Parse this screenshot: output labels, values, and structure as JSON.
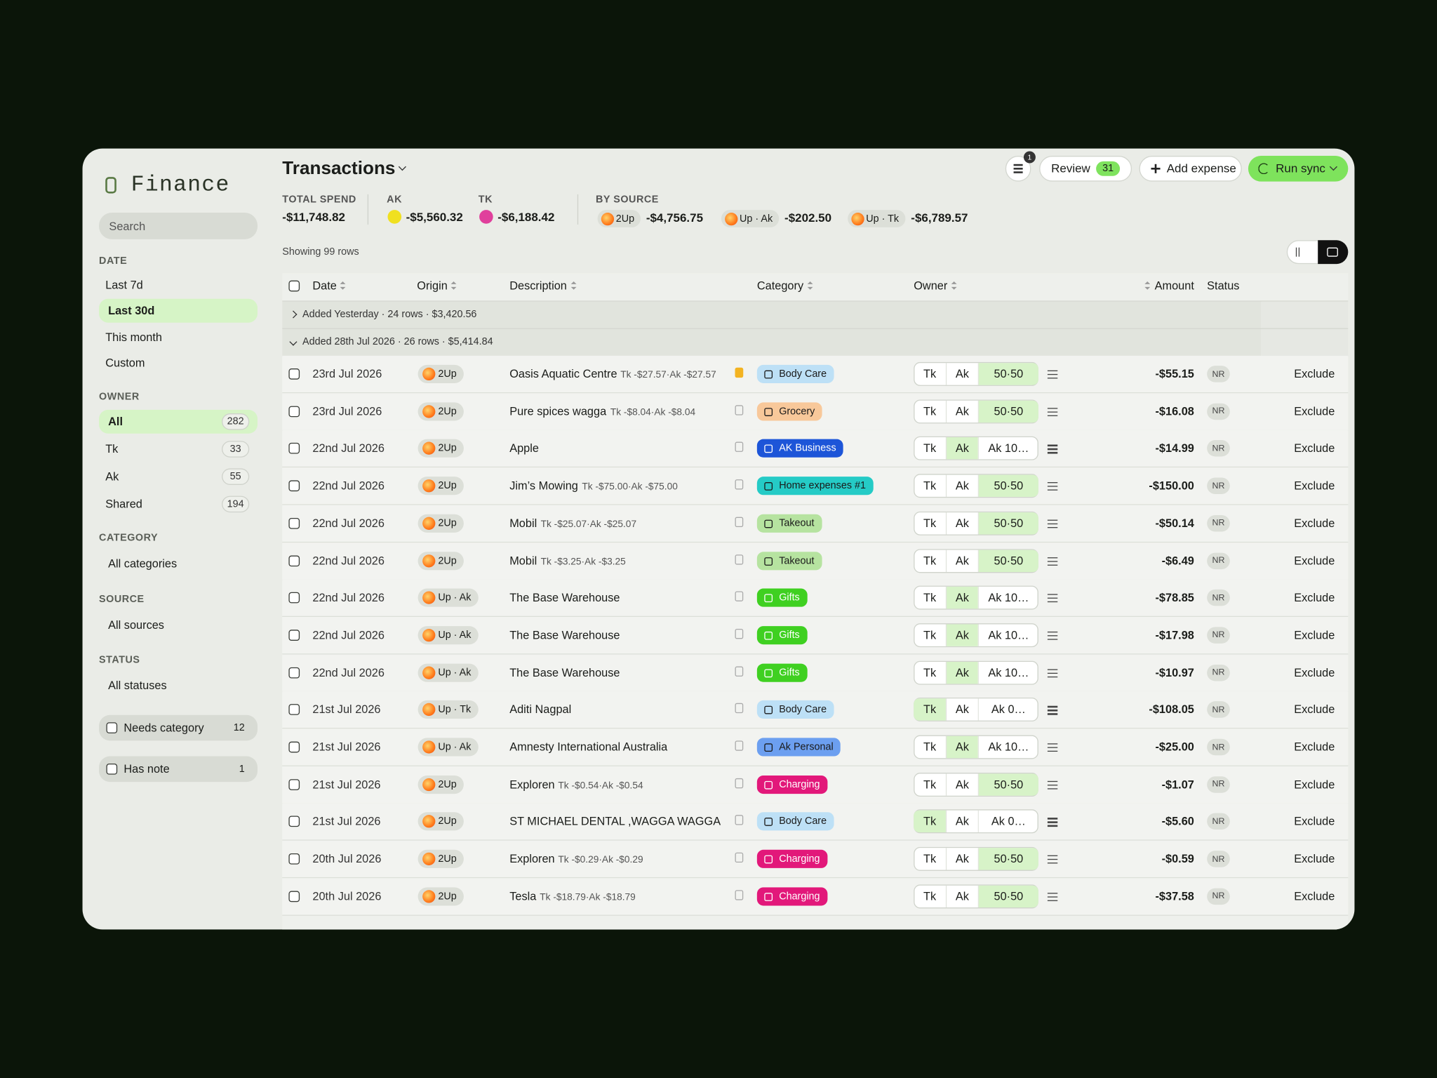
{
  "brand": "Finance",
  "sidebar": {
    "search": "Search",
    "date": {
      "label": "DATE",
      "items": [
        "Last 7d",
        "Last 30d",
        "This month",
        "Custom"
      ],
      "active": "Last 30d"
    },
    "owner": {
      "label": "OWNER",
      "items": [
        {
          "name": "All",
          "count": 282
        },
        {
          "name": "Tk",
          "count": 33
        },
        {
          "name": "Ak",
          "count": 55
        },
        {
          "name": "Shared",
          "count": 194
        }
      ],
      "active": "All"
    },
    "category": {
      "label": "CATEGORY",
      "items": [
        "All categories"
      ]
    },
    "source": {
      "label": "SOURCE",
      "items": [
        "All sources"
      ]
    },
    "status": {
      "label": "STATUS",
      "items": [
        "All statuses"
      ]
    },
    "toggles": [
      {
        "name": "Needs category",
        "count": 12
      },
      {
        "name": "Has note",
        "count": 1
      }
    ]
  },
  "header": {
    "title": "Transactions",
    "filter_badge": "1",
    "review": "Review",
    "review_count": "31",
    "add": "Add expense",
    "sync": "Run sync"
  },
  "summary": {
    "total": {
      "label": "TOTAL SPEND",
      "value": "-$11,748.82"
    },
    "people": [
      {
        "label": "AK",
        "value": "-$5,560.32",
        "color": "#f0e020"
      },
      {
        "label": "TK",
        "value": "-$6,188.42",
        "color": "#e0409c"
      }
    ],
    "by_source": {
      "label": "BY SOURCE",
      "items": [
        {
          "name": "2Up",
          "value": "-$4,756.75"
        },
        {
          "name": "Up · Ak",
          "value": "-$202.50"
        },
        {
          "name": "Up · Tk",
          "value": "-$6,789.57"
        }
      ]
    }
  },
  "table": {
    "showing": "Showing 99 rows",
    "columns": [
      "Date",
      "Origin",
      "Description",
      "Category",
      "Owner",
      "Amount",
      "Status"
    ],
    "groups": [
      {
        "label": "Added Yesterday · 24 rows · $3,420.56",
        "expanded": false
      },
      {
        "label": "Added 28th Jul 2026 · 26 rows · $5,414.84",
        "expanded": true
      }
    ],
    "rows": [
      {
        "date": "23rd Jul 2026",
        "origin": "2Up",
        "description": "Oasis Aquatic Centre",
        "note": "Tk -$27.57·Ak -$27.57",
        "note_flag": true,
        "category": "Body Care",
        "category_color": "#bde0f6",
        "owner": [
          "Tk",
          "Ak",
          "50·50"
        ],
        "owner_active": "50·50",
        "amount": "-$55.15",
        "status": "NR",
        "action": "Exclude"
      },
      {
        "date": "23rd Jul 2026",
        "origin": "2Up",
        "description": "Pure spices wagga",
        "note": "Tk -$8.04·Ak -$8.04",
        "note_flag": false,
        "category": "Grocery",
        "category_color": "#f8c89a",
        "owner": [
          "Tk",
          "Ak",
          "50·50"
        ],
        "owner_active": "50·50",
        "amount": "-$16.08",
        "status": "NR",
        "action": "Exclude"
      },
      {
        "date": "22nd Jul 2026",
        "origin": "2Up",
        "description": "Apple",
        "note_flag": false,
        "category": "AK Business",
        "category_color": "#1d55d8",
        "owner": [
          "Tk",
          "Ak",
          "Ak 10…"
        ],
        "owner_active": "Ak",
        "amount": "-$14.99",
        "status": "NR",
        "action": "Exclude"
      },
      {
        "date": "22nd Jul 2026",
        "origin": "2Up",
        "description": "Jim’s Mowing",
        "note": "Tk -$75.00·Ak -$75.00",
        "note_flag": false,
        "category": "Home expenses #1",
        "category_color": "#25cbc6",
        "owner": [
          "Tk",
          "Ak",
          "50·50"
        ],
        "owner_active": "50·50",
        "amount": "-$150.00",
        "status": "NR",
        "action": "Exclude"
      },
      {
        "date": "22nd Jul 2026",
        "origin": "2Up",
        "description": "Mobil",
        "note": "Tk -$25.07·Ak -$25.07",
        "note_flag": false,
        "category": "Takeout",
        "category_color": "#b6e3a0",
        "owner": [
          "Tk",
          "Ak",
          "50·50"
        ],
        "owner_active": "50·50",
        "amount": "-$50.14",
        "status": "NR",
        "action": "Exclude"
      },
      {
        "date": "22nd Jul 2026",
        "origin": "2Up",
        "description": "Mobil",
        "note": "Tk -$3.25·Ak -$3.25",
        "note_flag": false,
        "category": "Takeout",
        "category_color": "#b6e3a0",
        "owner": [
          "Tk",
          "Ak",
          "50·50"
        ],
        "owner_active": "50·50",
        "amount": "-$6.49",
        "status": "NR",
        "action": "Exclude"
      },
      {
        "date": "22nd Jul 2026",
        "origin": "Up · Ak",
        "description": "The Base Warehouse",
        "note_flag": false,
        "category": "Gifts",
        "category_color": "#3fd021",
        "owner": [
          "Tk",
          "Ak",
          "Ak 10…"
        ],
        "owner_active": "Ak",
        "amount": "-$78.85",
        "status": "NR",
        "action": "Exclude"
      },
      {
        "date": "22nd Jul 2026",
        "origin": "Up · Ak",
        "description": "The Base Warehouse",
        "note_flag": false,
        "category": "Gifts",
        "category_color": "#3fd021",
        "owner": [
          "Tk",
          "Ak",
          "Ak 10…"
        ],
        "owner_active": "Ak",
        "amount": "-$17.98",
        "status": "NR",
        "action": "Exclude"
      },
      {
        "date": "22nd Jul 2026",
        "origin": "Up · Ak",
        "description": "The Base Warehouse",
        "note_flag": false,
        "category": "Gifts",
        "category_color": "#3fd021",
        "owner": [
          "Tk",
          "Ak",
          "Ak 10…"
        ],
        "owner_active": "Ak",
        "amount": "-$10.97",
        "status": "NR",
        "action": "Exclude"
      },
      {
        "date": "21st Jul 2026",
        "origin": "Up · Tk",
        "description": "Aditi Nagpal",
        "note_flag": false,
        "category": "Body Care",
        "category_color": "#bde0f6",
        "owner": [
          "Tk",
          "Ak",
          "Ak 0…"
        ],
        "owner_active": "Tk",
        "amount": "-$108.05",
        "status": "NR",
        "action": "Exclude"
      },
      {
        "date": "21st Jul 2026",
        "origin": "Up · Ak",
        "description": "Amnesty International Australia",
        "note_flag": false,
        "category": "Ak Personal",
        "category_color": "#6c9ff0",
        "owner": [
          "Tk",
          "Ak",
          "Ak 10…"
        ],
        "owner_active": "Ak",
        "amount": "-$25.00",
        "status": "NR",
        "action": "Exclude"
      },
      {
        "date": "21st Jul 2026",
        "origin": "2Up",
        "description": "Exploren",
        "note": "Tk -$0.54·Ak -$0.54",
        "note_flag": false,
        "category": "Charging",
        "category_color": "#e2187a",
        "owner": [
          "Tk",
          "Ak",
          "50·50"
        ],
        "owner_active": "50·50",
        "amount": "-$1.07",
        "status": "NR",
        "action": "Exclude"
      },
      {
        "date": "21st Jul 2026",
        "origin": "2Up",
        "description": "ST MICHAEL DENTAL ,WAGGA WAGGA",
        "note_flag": false,
        "category": "Body Care",
        "category_color": "#bde0f6",
        "owner": [
          "Tk",
          "Ak",
          "Ak 0…"
        ],
        "owner_active": "Tk",
        "amount": "-$5.60",
        "status": "NR",
        "action": "Exclude"
      },
      {
        "date": "20th Jul 2026",
        "origin": "2Up",
        "description": "Exploren",
        "note": "Tk -$0.29·Ak -$0.29",
        "note_flag": false,
        "category": "Charging",
        "category_color": "#e2187a",
        "owner": [
          "Tk",
          "Ak",
          "50·50"
        ],
        "owner_active": "50·50",
        "amount": "-$0.59",
        "status": "NR",
        "action": "Exclude"
      },
      {
        "date": "20th Jul 2026",
        "origin": "2Up",
        "description": "Tesla",
        "note": "Tk -$18.79·Ak -$18.79",
        "note_flag": false,
        "category": "Charging",
        "category_color": "#e2187a",
        "owner": [
          "Tk",
          "Ak",
          "50·50"
        ],
        "owner_active": "50·50",
        "amount": "-$37.58",
        "status": "NR",
        "action": "Exclude"
      }
    ]
  }
}
